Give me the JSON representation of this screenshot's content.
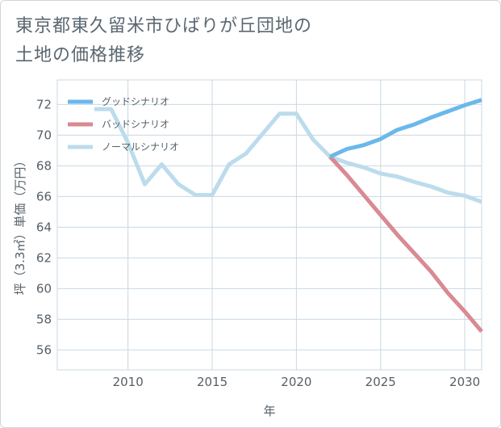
{
  "title": {
    "line1": "東京都東久留米市ひばりが丘団地の",
    "line2": "土地の価格推移"
  },
  "colors": {
    "good": "#6bb8ea",
    "bad": "#d98a92",
    "normal": "#bcdcec",
    "grid": "#c9d8e2",
    "axis_text": "#566068"
  },
  "chart_data": {
    "type": "line",
    "title": "東京都東久留米市ひばりが丘団地の土地の価格推移",
    "xlabel": "年",
    "ylabel": "坪（3.3㎡）単価（万円）",
    "xlim": [
      2005.8,
      2031
    ],
    "ylim": [
      54.7,
      73.6
    ],
    "x_ticks": [
      2010,
      2015,
      2020,
      2025,
      2030
    ],
    "y_ticks": [
      56,
      58,
      60,
      62,
      64,
      66,
      68,
      70,
      72
    ],
    "grid": true,
    "legend_position": "top-left",
    "series": [
      {
        "name": "グッドシナリオ",
        "color": "#6bb8ea",
        "points": [
          [
            2022,
            68.6
          ],
          [
            2023,
            69.1
          ],
          [
            2024,
            69.35
          ],
          [
            2025,
            69.75
          ],
          [
            2026,
            70.35
          ],
          [
            2027,
            70.7
          ],
          [
            2028,
            71.15
          ],
          [
            2029,
            71.55
          ],
          [
            2030,
            71.95
          ],
          [
            2031,
            72.3
          ]
        ]
      },
      {
        "name": "バッドシナリオ",
        "color": "#d98a92",
        "points": [
          [
            2022,
            68.6
          ],
          [
            2023,
            67.4
          ],
          [
            2024,
            66.1
          ],
          [
            2025,
            64.8
          ],
          [
            2026,
            63.5
          ],
          [
            2027,
            62.3
          ],
          [
            2028,
            61.1
          ],
          [
            2029,
            59.7
          ],
          [
            2030,
            58.5
          ],
          [
            2031,
            57.2
          ]
        ]
      },
      {
        "name": "ノーマルシナリオ",
        "color": "#bcdcec",
        "points": [
          [
            2008,
            71.7
          ],
          [
            2009,
            71.7
          ],
          [
            2010,
            69.5
          ],
          [
            2011,
            66.8
          ],
          [
            2012,
            68.1
          ],
          [
            2013,
            66.8
          ],
          [
            2014,
            66.1
          ],
          [
            2015,
            66.1
          ],
          [
            2016,
            68.1
          ],
          [
            2017,
            68.8
          ],
          [
            2018,
            70.1
          ],
          [
            2019,
            71.4
          ],
          [
            2020,
            71.4
          ],
          [
            2021,
            69.7
          ],
          [
            2022,
            68.6
          ],
          [
            2023,
            68.2
          ],
          [
            2024,
            67.9
          ],
          [
            2025,
            67.5
          ],
          [
            2026,
            67.3
          ],
          [
            2027,
            66.95
          ],
          [
            2028,
            66.65
          ],
          [
            2029,
            66.25
          ],
          [
            2030,
            66.05
          ],
          [
            2031,
            65.65
          ]
        ]
      }
    ]
  }
}
